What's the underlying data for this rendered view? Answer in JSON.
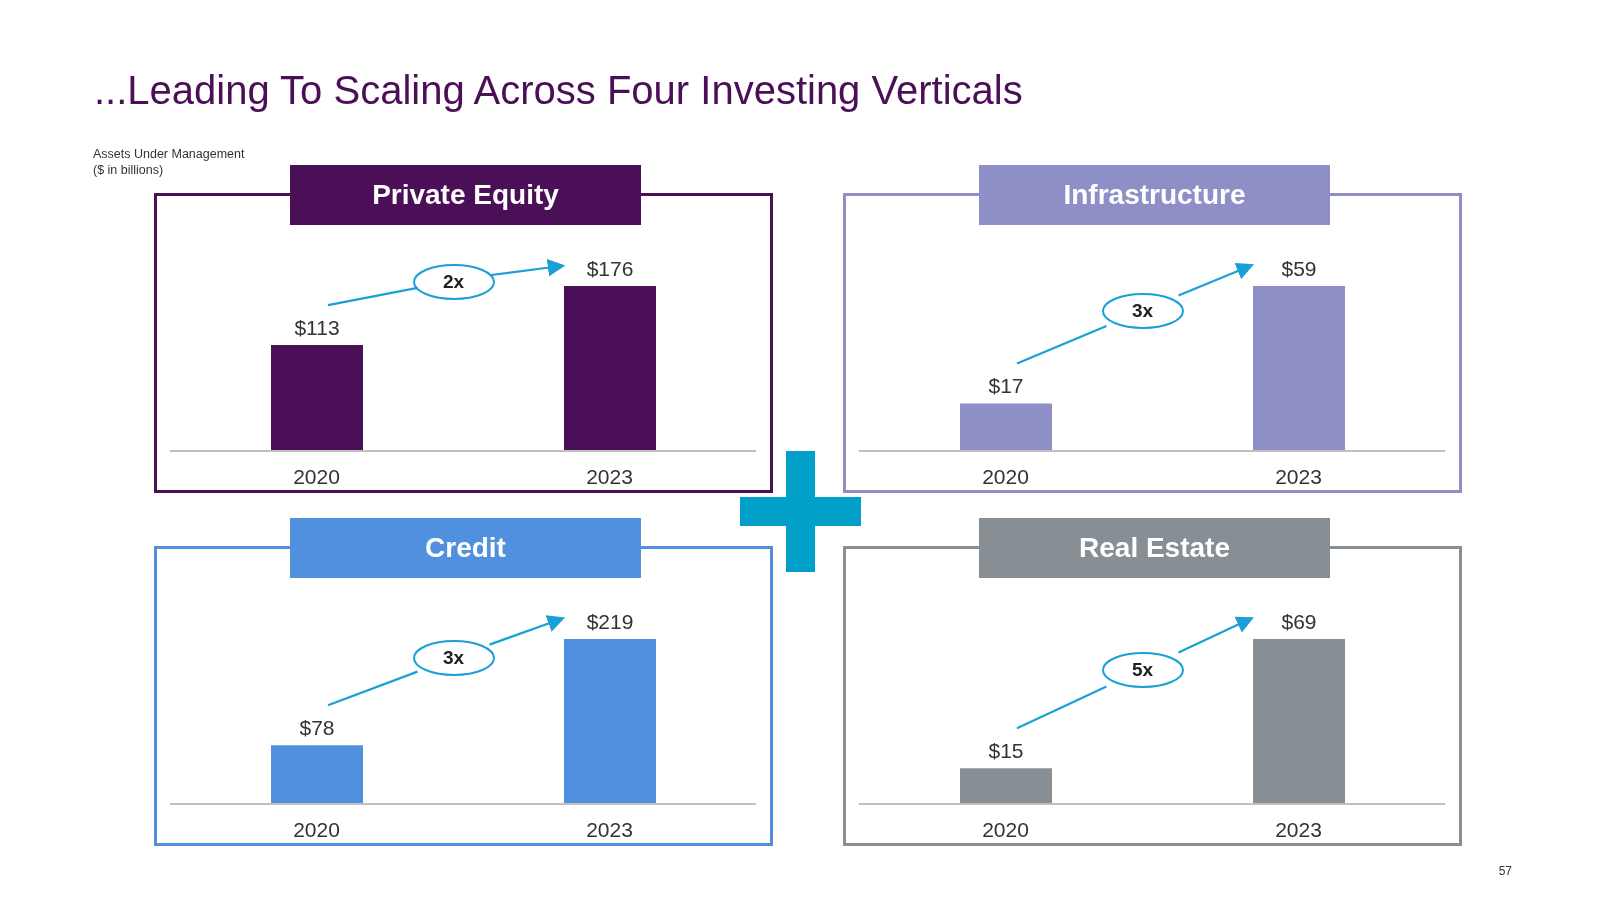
{
  "chart_data": [
    {
      "type": "bar",
      "title": "Private Equity",
      "subtitle": "...Leading To Scaling Across Four Investing Verticals",
      "ylabel": "Assets Under Management\n($ in billions)",
      "categories": [
        "2020",
        "2023"
      ],
      "values": [
        113,
        176
      ],
      "value_labels": [
        "$113",
        "$176"
      ],
      "color": "#4a0f57",
      "annotations": [
        "2x"
      ]
    },
    {
      "type": "bar",
      "title": "Infrastructure",
      "categories": [
        "2020",
        "2023"
      ],
      "values": [
        17,
        59
      ],
      "value_labels": [
        "$17",
        "$59"
      ],
      "color": "#8f8fc8",
      "annotations": [
        "3x"
      ]
    },
    {
      "type": "bar",
      "title": "Credit",
      "categories": [
        "2020",
        "2023"
      ],
      "values": [
        78,
        219
      ],
      "value_labels": [
        "$78",
        "$219"
      ],
      "color": "#518fdf",
      "annotations": [
        "3x"
      ]
    },
    {
      "type": "bar",
      "title": "Real Estate",
      "categories": [
        "2020",
        "2023"
      ],
      "values": [
        15,
        69
      ],
      "value_labels": [
        "$15",
        "$69"
      ],
      "color": "#878f94",
      "annotations": [
        "5x",
        "57"
      ]
    }
  ]
}
